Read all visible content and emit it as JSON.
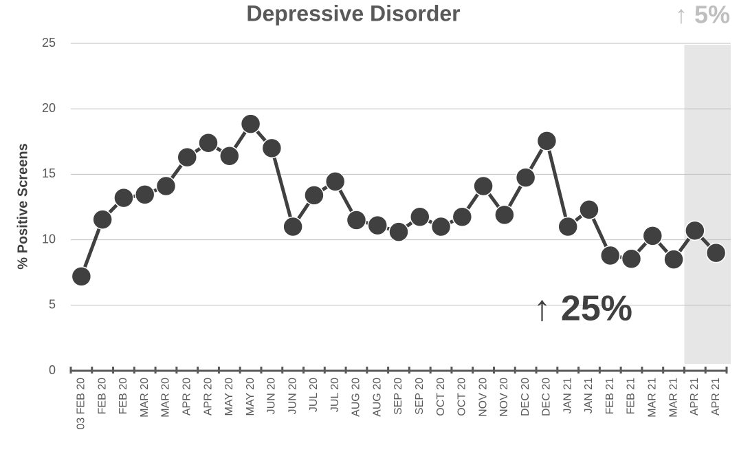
{
  "chart_data": {
    "type": "line",
    "title": "Depressive Disorder",
    "y_label": "% Positive Screens",
    "categories": [
      "03 FEB 20",
      "FEB 20",
      "FEB 20",
      "MAR 20",
      "MAR 20",
      "APR 20",
      "APR 20",
      "MAY 20",
      "MAY 20",
      "JUN 20",
      "JUN 20",
      "JUL 20",
      "JUL 20",
      "AUG 20",
      "AUG 20",
      "SEP 20",
      "SEP 20",
      "OCT 20",
      "OCT 20",
      "NOV 20",
      "NOV 20",
      "DEC 20",
      "DEC 20",
      "JAN 21",
      "JAN 21",
      "FEB 21",
      "FEB 21",
      "MAR 21",
      "MAR 21",
      "APR 21",
      "APR 21"
    ],
    "series": [
      {
        "name": "Depressive Disorder",
        "color": "#404040",
        "values": [
          7.2,
          11.55,
          13.2,
          13.45,
          14.1,
          16.3,
          17.4,
          16.4,
          18.85,
          17.0,
          11.0,
          13.4,
          14.45,
          11.5,
          11.1,
          10.6,
          11.75,
          11.0,
          11.75,
          14.1,
          11.9,
          14.75,
          17.55,
          11.0,
          12.3,
          8.8,
          8.55,
          10.3,
          8.5,
          10.7,
          9.0
        ]
      }
    ],
    "ylim": [
      0,
      25
    ],
    "yticks": [
      0,
      5,
      10,
      15,
      20,
      25
    ],
    "grid": true,
    "annotations": [
      {
        "text": "↑ 5%",
        "color": "#bfbfbf"
      },
      {
        "text": "↑ 25%",
        "color": "#404040"
      }
    ]
  }
}
